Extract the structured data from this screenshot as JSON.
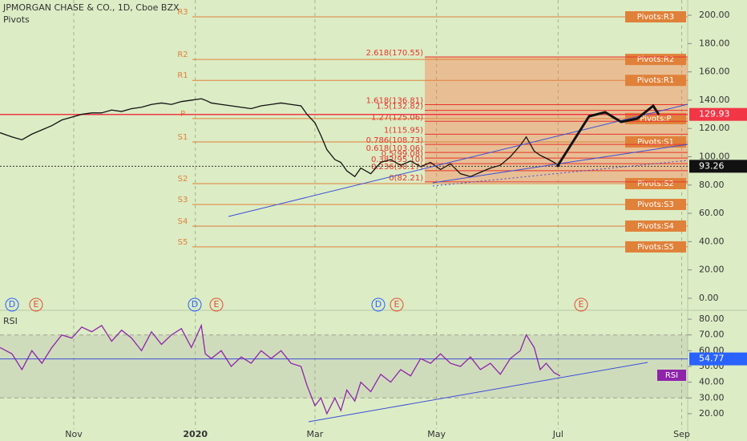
{
  "chart_data": [
    {
      "type": "line",
      "title": "JPMORGAN CHASE & CO., 1D, Cboe BZX",
      "subtitle": "Pivots",
      "xlim": [
        -6,
        339
      ],
      "ylim": [
        -7.4,
        210.8
      ],
      "yticks": [
        {
          "value": 0,
          "label": "0.00"
        },
        {
          "value": 20,
          "label": "20.00"
        },
        {
          "value": 40,
          "label": "40.00"
        },
        {
          "value": 60,
          "label": "60.00"
        },
        {
          "value": 80,
          "label": "80.00"
        },
        {
          "value": 100,
          "label": "100.00"
        },
        {
          "value": 120,
          "label": "120.00"
        },
        {
          "value": 140,
          "label": "140.00"
        },
        {
          "value": 160,
          "label": "160.00"
        },
        {
          "value": 180,
          "label": "180.00"
        },
        {
          "value": 200,
          "label": "200.00"
        }
      ],
      "x": [
        -6,
        0,
        5,
        10,
        15,
        20,
        25,
        30,
        35,
        40,
        45,
        50,
        55,
        60,
        65,
        70,
        75,
        80,
        85,
        90,
        95,
        97,
        100,
        105,
        110,
        115,
        120,
        125,
        130,
        135,
        140,
        145,
        148,
        152,
        155,
        158,
        162,
        165,
        168,
        172,
        175,
        180,
        185,
        190,
        195,
        200,
        205,
        210,
        215,
        220,
        225,
        230,
        235,
        240,
        245,
        250,
        255,
        258,
        262,
        265,
        268,
        272,
        275
      ],
      "series": [
        {
          "color": "#111111",
          "values": [
            117,
            114,
            112,
            116,
            119,
            122,
            126,
            128,
            130,
            131,
            131,
            133,
            132,
            134,
            135,
            137,
            138,
            137,
            139,
            140,
            141,
            140,
            138,
            137,
            136,
            135,
            134,
            136,
            137,
            138,
            137,
            136,
            130,
            124,
            115,
            105,
            98,
            96,
            90,
            86,
            92,
            88,
            96,
            98,
            94,
            97,
            93,
            96,
            91,
            95,
            88,
            86,
            89,
            92,
            94,
            100,
            108,
            114,
            104,
            101,
            99,
            96,
            93.26
          ]
        }
      ],
      "price_marker": {
        "value": 129.93,
        "color": "#f23645"
      },
      "pivots": [
        {
          "name": "R3",
          "label": "Pivots:R3",
          "value": 198.9
        },
        {
          "name": "R2",
          "label": "Pivots:R2",
          "value": 168.8
        },
        {
          "name": "R1",
          "label": "Pivots:R1",
          "value": 154
        },
        {
          "name": "P",
          "label": "Pivots:P",
          "value": 127
        },
        {
          "name": "S1",
          "label": "Pivots:S1",
          "value": 110.5
        },
        {
          "name": "S2",
          "label": "Pivots:S2",
          "value": 81
        },
        {
          "name": "S3",
          "label": "Pivots:S3",
          "value": 66.3
        },
        {
          "name": "S4",
          "label": "Pivots:S4",
          "value": 51
        },
        {
          "name": "S5",
          "label": "Pivots:S5",
          "value": 36.3
        }
      ],
      "pivot_color": "#e0813a",
      "fib_levels": [
        {
          "value": 170.55,
          "label": "2.618(170.55)"
        },
        {
          "value": 136.81,
          "label": "1.618(136.81)"
        },
        {
          "value": 132.82,
          "label": "1.5(132.82)"
        },
        {
          "value": 125.06,
          "label": "1.27(125.06)"
        },
        {
          "value": 115.95,
          "label": "1(115.95)"
        },
        {
          "value": 108.73,
          "label": "0.786(108.73)"
        },
        {
          "value": 103.06,
          "label": "0.618(103.06)"
        },
        {
          "value": 99.08,
          "label": "0.5(99.08)"
        },
        {
          "value": 95.1,
          "label": "0.382(95.10)"
        },
        {
          "value": 90.17,
          "label": "0.236(90.17)"
        },
        {
          "value": 82.21,
          "label": "0(82.21)"
        }
      ],
      "fib_color": "#e8332a",
      "events": [
        "D",
        "E",
        "D",
        "E",
        "D",
        "E",
        "E"
      ]
    },
    {
      "type": "line",
      "title": "RSI",
      "xlim": [
        -6,
        339
      ],
      "ylim": [
        10.3,
        84.1
      ],
      "xticks": [
        {
          "value": 31,
          "label": "Nov"
        },
        {
          "value": 92,
          "label": "2020"
        },
        {
          "value": 152,
          "label": "Mar"
        },
        {
          "value": 213,
          "label": "May"
        },
        {
          "value": 274,
          "label": "Jul"
        },
        {
          "value": 336,
          "label": "Sep"
        }
      ],
      "yticks": [
        {
          "value": 20,
          "label": "20.00"
        },
        {
          "value": 30,
          "label": "30.00"
        },
        {
          "value": 40,
          "label": "40.00"
        },
        {
          "value": 50,
          "label": "50.00"
        },
        {
          "value": 60,
          "label": "60.00"
        },
        {
          "value": 70,
          "label": "70.00"
        },
        {
          "value": 80,
          "label": "80.00"
        }
      ],
      "band": [
        30,
        70
      ],
      "level": 54.77,
      "x": [
        -6,
        0,
        5,
        10,
        15,
        20,
        25,
        30,
        35,
        40,
        45,
        50,
        55,
        60,
        65,
        70,
        75,
        80,
        85,
        90,
        95,
        97,
        100,
        105,
        110,
        115,
        120,
        125,
        130,
        135,
        140,
        145,
        148,
        152,
        155,
        158,
        162,
        165,
        168,
        172,
        175,
        180,
        185,
        190,
        195,
        200,
        205,
        210,
        215,
        220,
        225,
        230,
        235,
        240,
        245,
        250,
        255,
        258,
        262,
        265,
        268,
        272,
        275
      ],
      "series": [
        {
          "color": "#8e24aa",
          "values": [
            62,
            58,
            48,
            60,
            52,
            62,
            70,
            68,
            75,
            72,
            76,
            66,
            73,
            68,
            60,
            72,
            64,
            70,
            74,
            62,
            76,
            58,
            55,
            60,
            50,
            56,
            52,
            60,
            55,
            60,
            52,
            50,
            38,
            25,
            30,
            20,
            30,
            22,
            35,
            28,
            40,
            34,
            45,
            40,
            48,
            44,
            55,
            52,
            58,
            52,
            50,
            56,
            48,
            52,
            45,
            55,
            60,
            70,
            62,
            48,
            52,
            46,
            44
          ]
        }
      ]
    }
  ]
}
